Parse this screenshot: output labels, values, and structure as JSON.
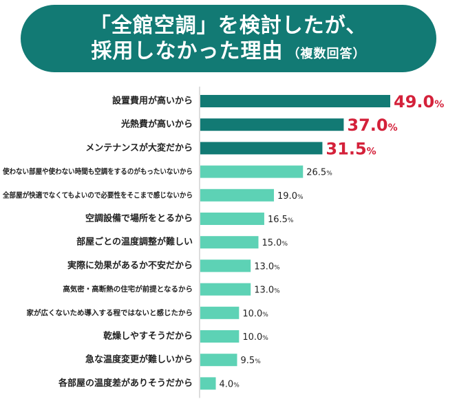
{
  "title": {
    "line1": "「全館空調」を検討したが、",
    "line2": "採用しなかった理由",
    "note": "（複数回答）"
  },
  "colors": {
    "banner": "#127a74",
    "top_bar": "#127a74",
    "other_bar": "#5dd2b5",
    "highlight_text": "#d4213a",
    "axis": "#bbbbbb"
  },
  "chart_data": {
    "type": "bar",
    "orientation": "horizontal",
    "unit": "%",
    "xlim": [
      0,
      49
    ],
    "categories": [
      "設置費用が高いから",
      "光熱費が高いから",
      "メンテナンスが大変だから",
      "使わない部屋や使わない時間も空調をするのがもったいないから",
      "全部屋が快適でなくてもよいので必要性をそこまで感じないから",
      "空調設備で場所をとるから",
      "部屋ごとの温度調整が難しい",
      "実際に効果があるか不安だから",
      "高気密・高断熱の住宅が前提となるから",
      "家が広くないため導入する程ではないと感じたから",
      "乾燥しやすそうだから",
      "急な温度変更が難しいから",
      "各部屋の温度差がありそうだから"
    ],
    "values": [
      49.0,
      37.0,
      31.5,
      26.5,
      19.0,
      16.5,
      15.0,
      13.0,
      13.0,
      10.0,
      10.0,
      9.5,
      4.0
    ],
    "value_labels": [
      "49.0",
      "37.0",
      "31.5",
      "26.5",
      "19.0",
      "16.5",
      "15.0",
      "13.0",
      "13.0",
      "10.0",
      "10.0",
      "9.5",
      "4.0"
    ],
    "highlight_top": 3
  }
}
